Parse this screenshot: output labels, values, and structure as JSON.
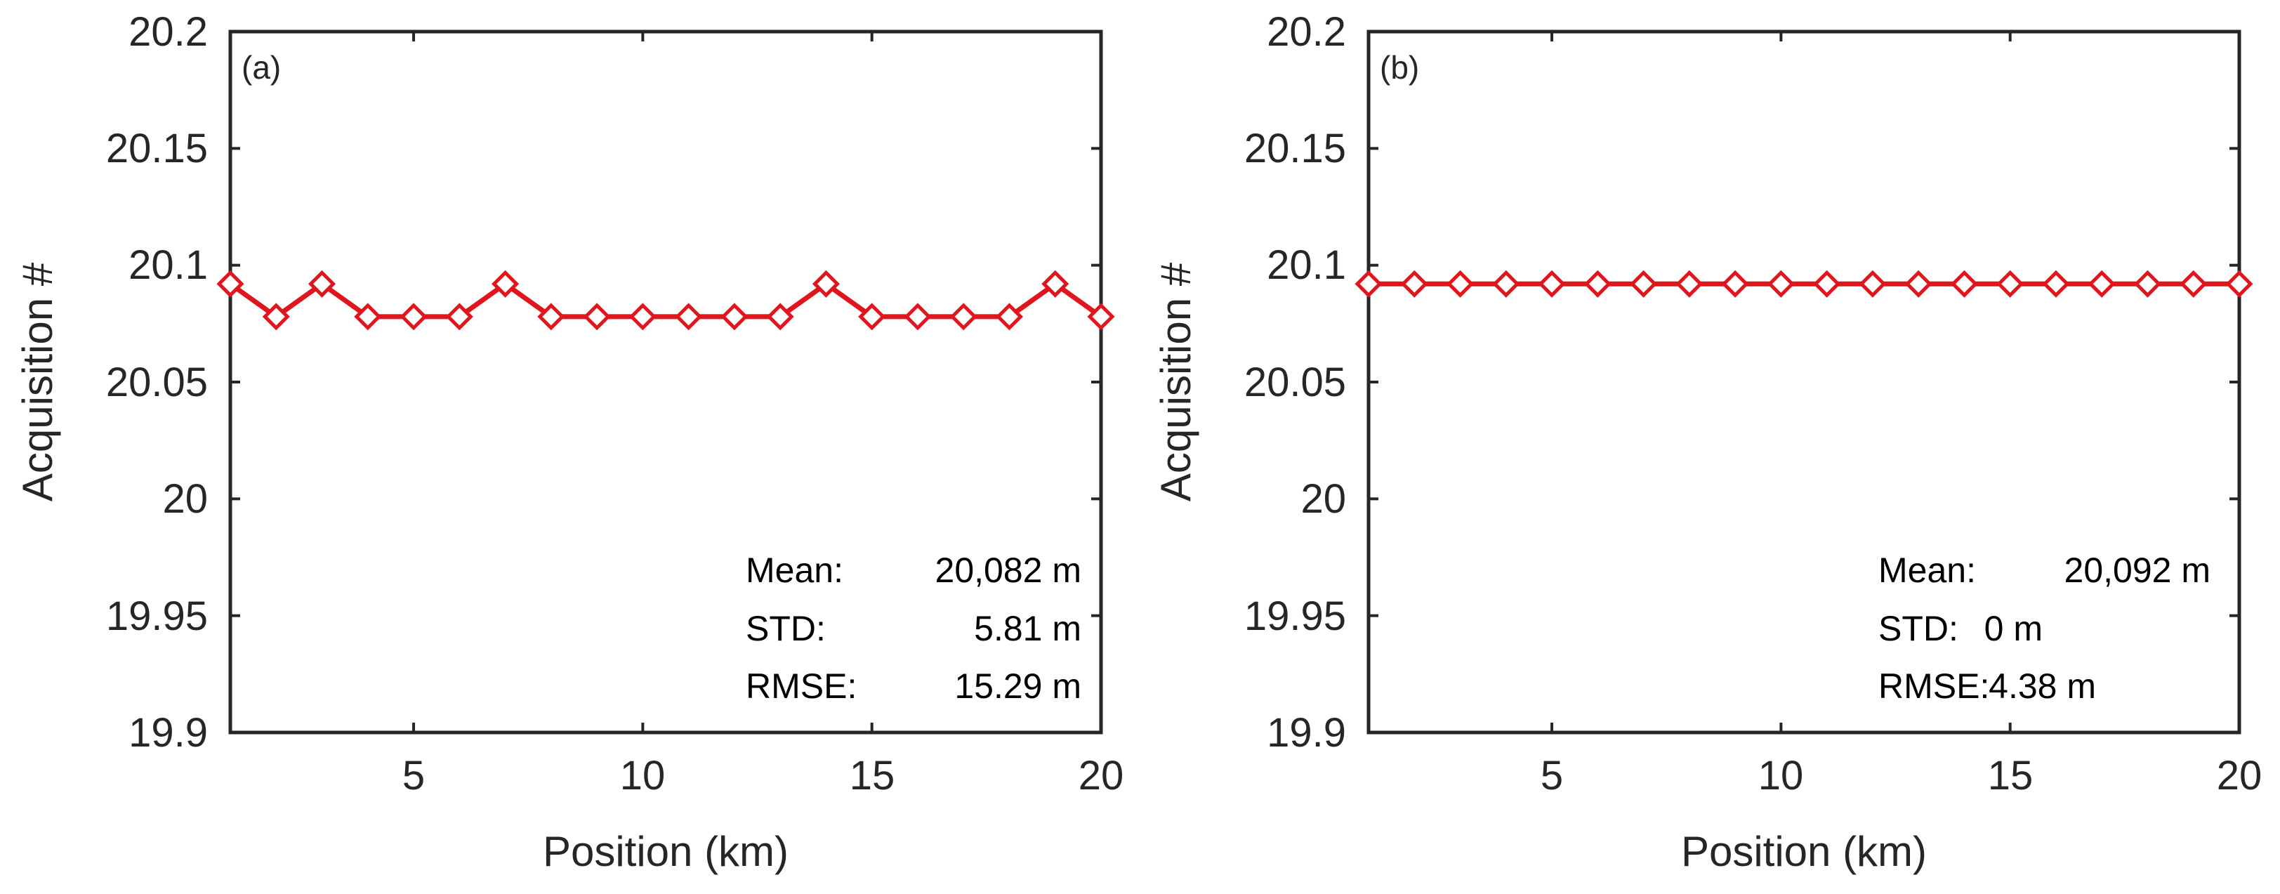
{
  "chart_data": [
    {
      "type": "line",
      "panel_label": "(a)",
      "xlabel": "Position (km)",
      "ylabel": "Acquisition #",
      "xlim": [
        1,
        20
      ],
      "ylim": [
        19.9,
        20.2
      ],
      "xticks": [
        5,
        10,
        15,
        20
      ],
      "xtick_labels": [
        "5",
        "10",
        "15",
        "20"
      ],
      "yticks": [
        19.9,
        19.95,
        20,
        20.05,
        20.1,
        20.15,
        20.2
      ],
      "ytick_labels": [
        "19.9",
        "19.95",
        "20",
        "20.05",
        "20.1",
        "20.15",
        "20.2"
      ],
      "grid": false,
      "series": [
        {
          "name": "Acquisition",
          "color": "#e0161e",
          "marker": "diamond",
          "x": [
            1,
            2,
            3,
            4,
            5,
            6,
            7,
            8,
            9,
            10,
            11,
            12,
            13,
            14,
            15,
            16,
            17,
            18,
            19,
            20
          ],
          "y": [
            20.092,
            20.078,
            20.092,
            20.078,
            20.078,
            20.078,
            20.092,
            20.078,
            20.078,
            20.078,
            20.078,
            20.078,
            20.078,
            20.092,
            20.078,
            20.078,
            20.078,
            20.078,
            20.092,
            20.078
          ]
        }
      ],
      "stats": {
        "mean_label": "Mean:",
        "mean_value": "20,082 m",
        "std_label": "STD:",
        "std_value": "5.81 m",
        "rmse_label": "RMSE:",
        "rmse_value": "15.29 m"
      }
    },
    {
      "type": "line",
      "panel_label": "(b)",
      "xlabel": "Position (km)",
      "ylabel": "Acquisition #",
      "xlim": [
        1,
        20
      ],
      "ylim": [
        19.9,
        20.2
      ],
      "xticks": [
        5,
        10,
        15,
        20
      ],
      "xtick_labels": [
        "5",
        "10",
        "15",
        "20"
      ],
      "yticks": [
        19.9,
        19.95,
        20,
        20.05,
        20.1,
        20.15,
        20.2
      ],
      "ytick_labels": [
        "19.9",
        "19.95",
        "20",
        "20.05",
        "20.1",
        "20.15",
        "20.2"
      ],
      "grid": false,
      "series": [
        {
          "name": "Acquisition",
          "color": "#e0161e",
          "marker": "diamond",
          "x": [
            1,
            2,
            3,
            4,
            5,
            6,
            7,
            8,
            9,
            10,
            11,
            12,
            13,
            14,
            15,
            16,
            17,
            18,
            19,
            20
          ],
          "y": [
            20.092,
            20.092,
            20.092,
            20.092,
            20.092,
            20.092,
            20.092,
            20.092,
            20.092,
            20.092,
            20.092,
            20.092,
            20.092,
            20.092,
            20.092,
            20.092,
            20.092,
            20.092,
            20.092,
            20.092
          ]
        }
      ],
      "stats": {
        "mean_label": "Mean:",
        "mean_value": "20,092 m",
        "std_label": "STD:",
        "std_value": "0 m",
        "rmse_label": "RMSE:",
        "rmse_value": "4.38 m"
      }
    }
  ]
}
